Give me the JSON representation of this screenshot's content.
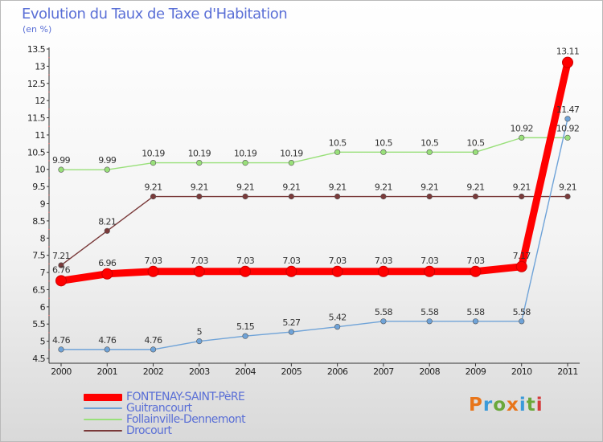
{
  "title": "Evolution du Taux de Taxe d'Habitation",
  "subtitle": "(en %)",
  "logo": {
    "text": "Proxiti",
    "colors": [
      "#e8751a",
      "#3a9ad9",
      "#6aa83b",
      "#e8751a",
      "#3a9ad9",
      "#6aa83b",
      "#d43c3c"
    ]
  },
  "chart_data": {
    "type": "line",
    "x": [
      "2000",
      "2001",
      "2002",
      "2003",
      "2004",
      "2005",
      "2006",
      "2007",
      "2008",
      "2009",
      "2010",
      "2011"
    ],
    "ylim": [
      4.5,
      13.5
    ],
    "yticks": [
      "4.5",
      "5",
      "5.5",
      "6",
      "6.5",
      "7",
      "7.5",
      "8",
      "8.5",
      "9",
      "9.5",
      "10",
      "10.5",
      "11",
      "11.5",
      "12",
      "12.5",
      "13",
      "13.5"
    ],
    "grid": false,
    "legend_position": "bottom-left",
    "series": [
      {
        "name": "FONTENAY-SAINT-PèRE",
        "color": "#ff0000",
        "width": 9,
        "values": [
          6.76,
          6.96,
          7.03,
          7.03,
          7.03,
          7.03,
          7.03,
          7.03,
          7.03,
          7.03,
          7.17,
          13.11
        ],
        "labels": [
          "6.76",
          "6.96",
          "7.03",
          "7.03",
          "7.03",
          "7.03",
          "7.03",
          "7.03",
          "7.03",
          "7.03",
          "7.17",
          "13.11"
        ]
      },
      {
        "name": "Guitrancourt",
        "color": "#6fa3d8",
        "width": 1.4,
        "values": [
          4.76,
          4.76,
          4.76,
          5,
          5.15,
          5.27,
          5.42,
          5.58,
          5.58,
          5.58,
          5.58,
          11.47
        ],
        "labels": [
          "4.76",
          "4.76",
          "4.76",
          "5",
          "5.15",
          "5.27",
          "5.42",
          "5.58",
          "5.58",
          "5.58",
          "5.58",
          "11.47"
        ]
      },
      {
        "name": "Follainville-Dennemont",
        "color": "#99e07a",
        "width": 1.4,
        "values": [
          9.99,
          9.99,
          10.19,
          10.19,
          10.19,
          10.19,
          10.5,
          10.5,
          10.5,
          10.5,
          10.92,
          10.92
        ],
        "labels": [
          "9.99",
          "9.99",
          "10.19",
          "10.19",
          "10.19",
          "10.19",
          "10.5",
          "10.5",
          "10.5",
          "10.5",
          "10.92",
          "10.92"
        ]
      },
      {
        "name": "Drocourt",
        "color": "#7a3a3a",
        "width": 1.4,
        "values": [
          7.21,
          8.21,
          9.21,
          9.21,
          9.21,
          9.21,
          9.21,
          9.21,
          9.21,
          9.21,
          9.21,
          9.21
        ],
        "labels": [
          "7.21",
          "8.21",
          "9.21",
          "9.21",
          "9.21",
          "9.21",
          "9.21",
          "9.21",
          "9.21",
          "9.21",
          "9.21",
          "9.21"
        ]
      }
    ]
  }
}
